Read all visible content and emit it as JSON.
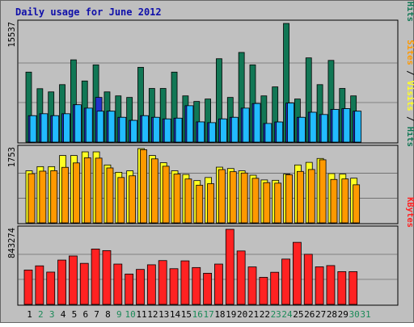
{
  "chart_data": {
    "type": "bar",
    "title": "Daily usage for June 2012",
    "categories": [
      "1",
      "2",
      "3",
      "4",
      "5",
      "6",
      "7",
      "8",
      "9",
      "10",
      "11",
      "12",
      "13",
      "14",
      "15",
      "16",
      "17",
      "18",
      "19",
      "20",
      "21",
      "22",
      "23",
      "24",
      "25",
      "26",
      "27",
      "28",
      "29",
      "30",
      "31"
    ],
    "weekend_days": [
      "2",
      "3",
      "9",
      "10",
      "16",
      "17",
      "23",
      "24",
      "30",
      "31"
    ],
    "panels": [
      {
        "id": "hits-files-pages",
        "scale_label": "15537",
        "ylim": [
          0,
          15537
        ],
        "legend": [
          "Pages",
          "Files",
          "Hits"
        ],
        "series": [
          {
            "name": "Hits",
            "color": "#117755",
            "values": [
              9164,
              6996,
              6576,
              7525,
              10770,
              8003,
              10114,
              6576,
              6054,
              5851,
              9792,
              7027,
              7026,
              9164,
              6054,
              5325,
              5641,
              10916,
              5851,
              11738,
              10114,
              6054,
              7229,
              15537,
              5641,
              11028,
              7525,
              10698,
              7027,
              6054,
              null
            ]
          },
          {
            "name": "Files",
            "color": "#2233cc",
            "values": [
              3460,
              3716,
              3460,
              3716,
              4893,
              4450,
              5853,
              4051,
              3248,
              2846,
              3460,
              3248,
              3036,
              3136,
              4769,
              2648,
              2548,
              3037,
              3248,
              4450,
              5050,
              2441,
              2635,
              5113,
              3248,
              3910,
              3611,
              4279,
              4383,
              4051,
              null
            ]
          },
          {
            "name": "Pages",
            "color": "#22bbff",
            "values": [
              3460,
              3716,
              3460,
              3716,
              4893,
              4450,
              4051,
              4051,
              3248,
              2846,
              3460,
              3248,
              3036,
              3136,
              4769,
              2648,
              2548,
              3037,
              3248,
              4450,
              5050,
              2441,
              2635,
              5113,
              3248,
              3910,
              3611,
              4279,
              4383,
              4051,
              null
            ]
          }
        ]
      },
      {
        "id": "visits-sites",
        "scale_label": "1753",
        "ylim": [
          0,
          1753
        ],
        "legend": [
          "Sites",
          "Visits",
          "Hits"
        ],
        "series": [
          {
            "name": "Visits",
            "color": "#ffff22",
            "values": [
              1228,
              1327,
              1327,
              1589,
              1589,
              1676,
              1676,
              1366,
              1193,
              1228,
              1753,
              1589,
              1419,
              1228,
              1142,
              997,
              1070,
              1314,
              1282,
              1228,
              1124,
              1012,
              1004,
              1151,
              1366,
              1427,
              1519,
              1163,
              1150,
              1054,
              null
            ]
          },
          {
            "name": "Sites",
            "color": "#ff9900",
            "values": [
              1160,
              1220,
              1230,
              1310,
              1414,
              1536,
              1527,
              1296,
              1070,
              1110,
              1727,
              1510,
              1336,
              1152,
              1035,
              889,
              924,
              1257,
              1207,
              1176,
              1051,
              949,
              937,
              1135,
              1214,
              1259,
              1488,
              1024,
              1036,
              898,
              null
            ]
          }
        ]
      },
      {
        "id": "kbytes",
        "scale_label": "843274",
        "ylim": [
          0,
          843274
        ],
        "legend": [
          "KBytes"
        ],
        "series": [
          {
            "name": "KBytes",
            "color": "#ff2222",
            "values": [
              386000,
              433000,
              363000,
              498000,
              544000,
              461000,
              622000,
              604000,
              453000,
              341000,
              393000,
              445000,
              492000,
              401000,
              489000,
              414000,
              350000,
              453000,
              843274,
              600000,
              421000,
              304000,
              361000,
              509000,
              697000,
              563000,
              422000,
              436000,
              368000,
              368000,
              null
            ]
          }
        ]
      }
    ],
    "colors": {
      "background": "#ffffff",
      "frame": "#bfbfbf",
      "plot_bg": "#c0c0c0",
      "title": "#1010aa",
      "weekday_label": "#000000",
      "weekend_label": "#1b8a58",
      "grid": "#444444"
    }
  }
}
